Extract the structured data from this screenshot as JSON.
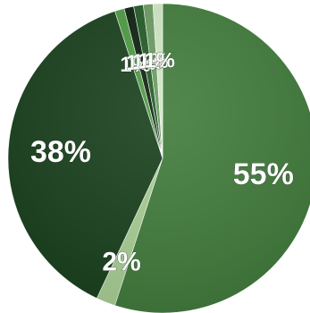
{
  "chart_data": {
    "type": "pie",
    "title": "",
    "start_angle_deg": 0,
    "direction": "clockwise",
    "labels": [
      "55%",
      "2%",
      "38%",
      "1%",
      "1%",
      "1%",
      "1%",
      "1%"
    ],
    "values": [
      55.0,
      2.0,
      38.0,
      1.0,
      1.0,
      1.0,
      1.0,
      1.0
    ],
    "colors": [
      "#3f7a3a",
      "#a8cf94",
      "#173f1b",
      "#4c9a42",
      "#0b1f0d",
      "#215a24",
      "#6a9a5f",
      "#cfe8c4"
    ],
    "legend": "none"
  }
}
